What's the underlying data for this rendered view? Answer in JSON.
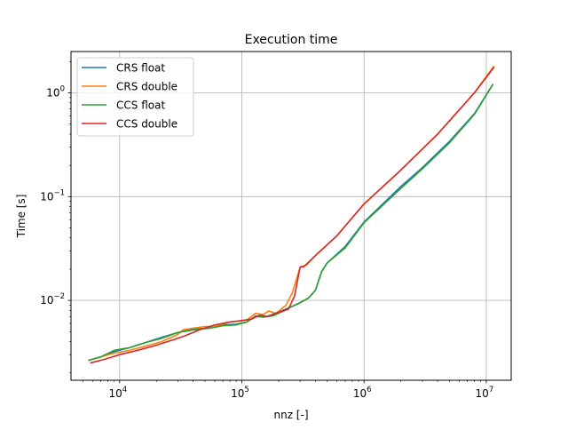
{
  "chart_data": {
    "type": "line",
    "title": "Execution time",
    "xlabel": "nnz [-]",
    "ylabel": "Time [s]",
    "xscale": "log",
    "yscale": "log",
    "xlim": [
      4000,
      16000000
    ],
    "ylim": [
      0.0017,
      2.5
    ],
    "x_ticks": [
      {
        "value": 10000,
        "base": "10",
        "exp": "4"
      },
      {
        "value": 100000,
        "base": "10",
        "exp": "5"
      },
      {
        "value": 1000000,
        "base": "10",
        "exp": "6"
      },
      {
        "value": 10000000,
        "base": "10",
        "exp": "7"
      }
    ],
    "y_ticks": [
      {
        "value": 0.01,
        "base": "10",
        "exp": "−2"
      },
      {
        "value": 0.1,
        "base": "10",
        "exp": "−1"
      },
      {
        "value": 1,
        "base": "10",
        "exp": "0"
      }
    ],
    "grid": true,
    "legend_position": "upper-left",
    "series": [
      {
        "name": "CRS float",
        "color": "#1f77b4",
        "points": [
          [
            5600,
            0.00265
          ],
          [
            7000,
            0.00285
          ],
          [
            9000,
            0.0032
          ],
          [
            12000,
            0.0035
          ],
          [
            16000,
            0.0039
          ],
          [
            22000,
            0.0044
          ],
          [
            30000,
            0.0049
          ],
          [
            40000,
            0.0053
          ],
          [
            55000,
            0.0054
          ],
          [
            70000,
            0.0058
          ],
          [
            90000,
            0.0059
          ],
          [
            110000,
            0.0062
          ],
          [
            130000,
            0.0071
          ],
          [
            150000,
            0.0069
          ],
          [
            180000,
            0.0072
          ],
          [
            220000,
            0.0081
          ],
          [
            260000,
            0.0088
          ],
          [
            300000,
            0.0095
          ],
          [
            350000,
            0.0105
          ],
          [
            400000,
            0.0125
          ],
          [
            450000,
            0.019
          ],
          [
            500000,
            0.023
          ],
          [
            700000,
            0.033
          ],
          [
            1000000,
            0.057
          ],
          [
            2000000,
            0.125
          ],
          [
            3000000,
            0.19
          ],
          [
            5000000,
            0.34
          ],
          [
            8000000,
            0.63
          ],
          [
            11300000,
            1.2
          ]
        ]
      },
      {
        "name": "CRS double",
        "color": "#ff7f0e",
        "points": [
          [
            5600,
            0.00265
          ],
          [
            7000,
            0.00285
          ],
          [
            9000,
            0.0031
          ],
          [
            12000,
            0.0033
          ],
          [
            16000,
            0.0036
          ],
          [
            22000,
            0.004
          ],
          [
            30000,
            0.0047
          ],
          [
            33000,
            0.0052
          ],
          [
            40000,
            0.0054
          ],
          [
            50000,
            0.0056
          ],
          [
            60000,
            0.0056
          ],
          [
            80000,
            0.0062
          ],
          [
            95000,
            0.0063
          ],
          [
            110000,
            0.0065
          ],
          [
            130000,
            0.0075
          ],
          [
            150000,
            0.0073
          ],
          [
            165000,
            0.0079
          ],
          [
            190000,
            0.0075
          ],
          [
            230000,
            0.009
          ],
          [
            260000,
            0.012
          ],
          [
            300000,
            0.021
          ],
          [
            340000,
            0.022
          ],
          [
            400000,
            0.027
          ],
          [
            600000,
            0.042
          ],
          [
            1000000,
            0.085
          ],
          [
            2000000,
            0.18
          ],
          [
            4000000,
            0.4
          ],
          [
            8000000,
            1.0
          ],
          [
            11500000,
            1.8
          ]
        ]
      },
      {
        "name": "CCS float",
        "color": "#2ca02c",
        "points": [
          [
            5600,
            0.00265
          ],
          [
            7000,
            0.00285
          ],
          [
            9000,
            0.0033
          ],
          [
            12000,
            0.0035
          ],
          [
            16000,
            0.0039
          ],
          [
            22000,
            0.0043
          ],
          [
            30000,
            0.0049
          ],
          [
            40000,
            0.0052
          ],
          [
            55000,
            0.0054
          ],
          [
            70000,
            0.0057
          ],
          [
            90000,
            0.0058
          ],
          [
            110000,
            0.0062
          ],
          [
            130000,
            0.007
          ],
          [
            150000,
            0.0069
          ],
          [
            180000,
            0.0071
          ],
          [
            220000,
            0.0079
          ],
          [
            260000,
            0.0088
          ],
          [
            300000,
            0.0095
          ],
          [
            350000,
            0.0105
          ],
          [
            400000,
            0.0125
          ],
          [
            450000,
            0.019
          ],
          [
            500000,
            0.023
          ],
          [
            700000,
            0.032
          ],
          [
            1000000,
            0.056
          ],
          [
            2000000,
            0.12
          ],
          [
            3000000,
            0.185
          ],
          [
            5000000,
            0.33
          ],
          [
            8000000,
            0.62
          ],
          [
            11300000,
            1.2
          ]
        ]
      },
      {
        "name": "CCS double",
        "color": "#d62728",
        "points": [
          [
            5800,
            0.0025
          ],
          [
            7500,
            0.0027
          ],
          [
            10000,
            0.003
          ],
          [
            14000,
            0.0033
          ],
          [
            20000,
            0.0037
          ],
          [
            28000,
            0.0042
          ],
          [
            35000,
            0.0046
          ],
          [
            45000,
            0.0052
          ],
          [
            60000,
            0.0058
          ],
          [
            80000,
            0.0062
          ],
          [
            100000,
            0.0064
          ],
          [
            120000,
            0.0066
          ],
          [
            140000,
            0.0072
          ],
          [
            160000,
            0.007
          ],
          [
            200000,
            0.0077
          ],
          [
            240000,
            0.0082
          ],
          [
            270000,
            0.011
          ],
          [
            300000,
            0.021
          ],
          [
            320000,
            0.021
          ],
          [
            400000,
            0.027
          ],
          [
            600000,
            0.042
          ],
          [
            1000000,
            0.085
          ],
          [
            2000000,
            0.18
          ],
          [
            4000000,
            0.4
          ],
          [
            8000000,
            1.0
          ],
          [
            11500000,
            1.75
          ]
        ]
      }
    ]
  }
}
